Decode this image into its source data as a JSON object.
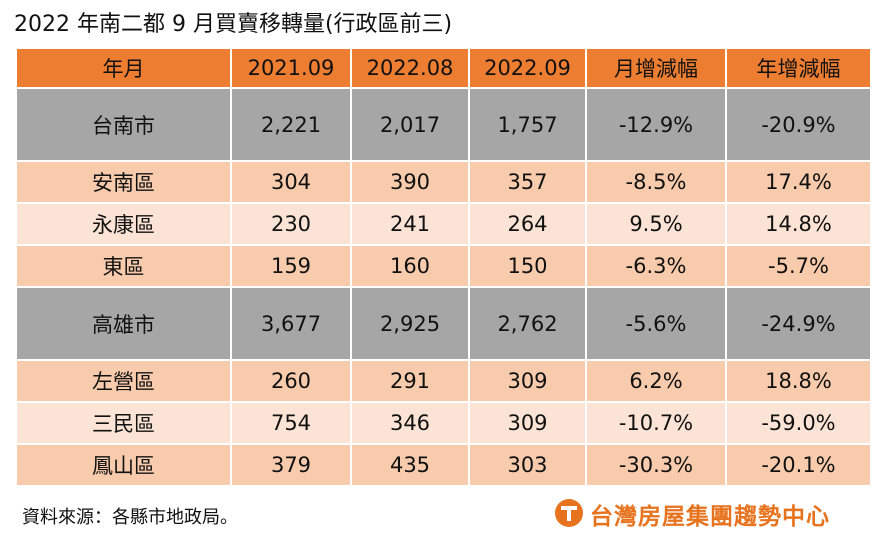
{
  "header": {
    "title": "2022 年南二都 9 月買賣移轉量(行政區前三)"
  },
  "table": {
    "columns": [
      "年月",
      "2021.09",
      "2022.08",
      "2022.09",
      "月增減幅",
      "年增減幅"
    ],
    "rows": [
      [
        "台南市",
        "2,221",
        "2,017",
        "1,757",
        "-12.9%",
        "-20.9%"
      ],
      [
        "安南區",
        "304",
        "390",
        "357",
        "-8.5%",
        "17.4%"
      ],
      [
        "永康區",
        "230",
        "241",
        "264",
        "9.5%",
        "14.8%"
      ],
      [
        "東區",
        "159",
        "160",
        "150",
        "-6.3%",
        "-5.7%"
      ],
      [
        "高雄市",
        "3,677",
        "2,925",
        "2,762",
        "-5.6%",
        "-24.9%"
      ],
      [
        "左營區",
        "260",
        "291",
        "309",
        "6.2%",
        "18.8%"
      ],
      [
        "三民區",
        "754",
        "346",
        "309",
        "-10.7%",
        "-59.0%"
      ],
      [
        "鳳山區",
        "379",
        "435",
        "303",
        "-30.3%",
        "-20.1%"
      ]
    ]
  },
  "footer": {
    "source": "資料來源：各縣市地政局。",
    "brand": "台灣房屋集團趨勢中心"
  }
}
